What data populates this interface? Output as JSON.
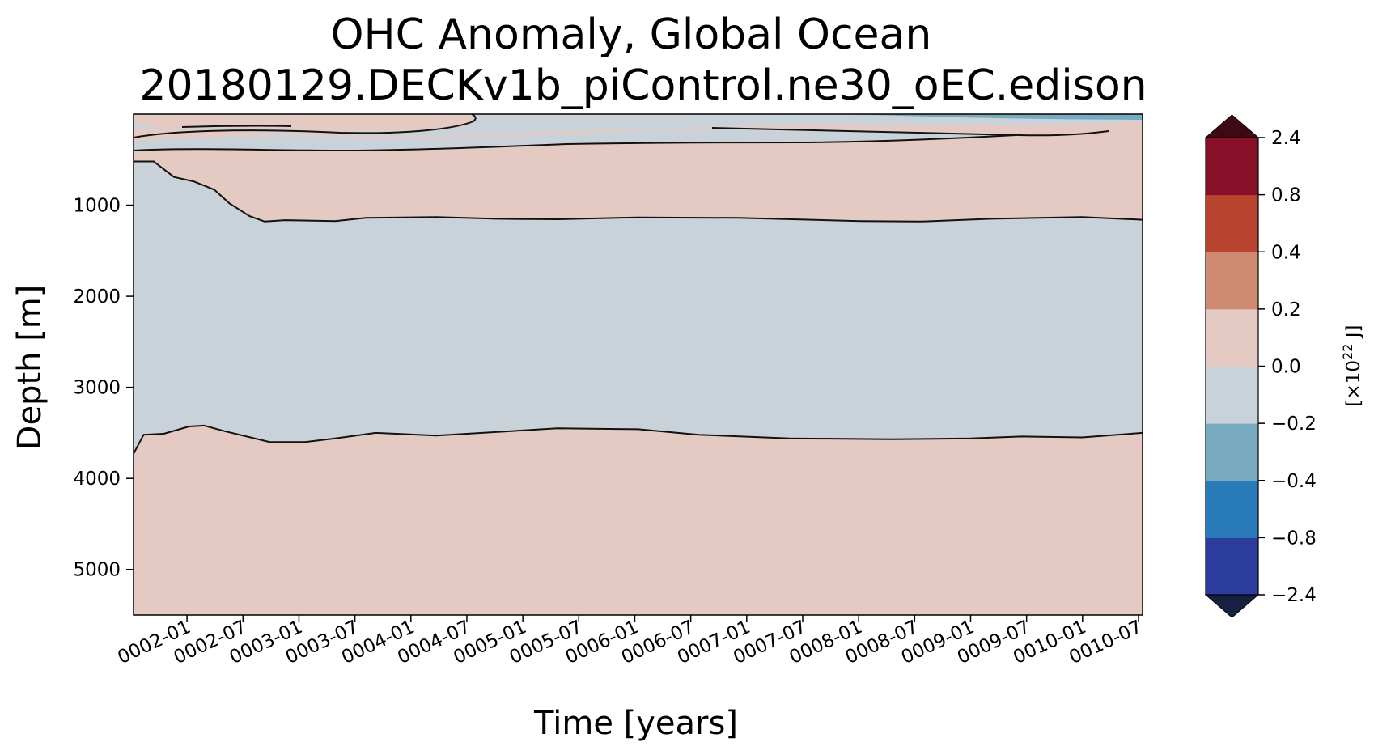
{
  "chart_data": {
    "type": "heatmap",
    "title_line1": "OHC Anomaly, Global Ocean",
    "title_line2": "20180129.DECKv1b_piControl.ne30_oEC.edison",
    "xlabel": "Time [years]",
    "ylabel": "Depth [m]",
    "x_range": [
      "0001-07",
      "0010-07"
    ],
    "ylim": [
      5500,
      0
    ],
    "x_ticks": [
      "0002-01",
      "0002-07",
      "0003-01",
      "0003-07",
      "0004-01",
      "0004-07",
      "0005-01",
      "0005-07",
      "0006-01",
      "0006-07",
      "0007-01",
      "0007-07",
      "0008-01",
      "0008-07",
      "0009-01",
      "0009-07",
      "0010-01",
      "0010-07"
    ],
    "y_ticks": [
      1000,
      2000,
      3000,
      4000,
      5000
    ],
    "y_tick_labels": [
      "1000",
      "2000",
      "3000",
      "4000",
      "5000"
    ],
    "colorbar": {
      "label_prefix": "[×10",
      "label_exponent": "22",
      "label_suffix": " J]",
      "levels": [
        -2.4,
        -0.8,
        -0.4,
        -0.2,
        0.0,
        0.2,
        0.4,
        0.8,
        2.4
      ],
      "tick_labels": [
        "−2.4",
        "−0.8",
        "−0.4",
        "−0.2",
        "0.0",
        "0.2",
        "0.4",
        "0.8",
        "2.4"
      ],
      "colors": [
        "#2b3c9c",
        "#2a7bba",
        "#78aac0",
        "#c9d2d9",
        "#e5cac3",
        "#cf8b72",
        "#b8432e",
        "#870f28"
      ],
      "extend_low_color": "#17203f",
      "extend_high_color": "#3e0814"
    },
    "regions": [
      {
        "name": "upper-positive",
        "level_range": [
          0.0,
          0.2
        ],
        "top_depth": 0,
        "bottom_depth": 1150
      },
      {
        "name": "middle-negative",
        "level_range": [
          -0.2,
          0.0
        ],
        "top_depth": 1150,
        "bottom_depth": 3550
      },
      {
        "name": "deep-positive",
        "level_range": [
          0.0,
          0.2
        ],
        "top_depth": 3550,
        "bottom_depth": 5500
      }
    ],
    "contour_levels": [
      0.0
    ],
    "contours": {
      "upper_boundary_depth": [
        [
          0.0,
          520
        ],
        [
          0.02,
          520
        ],
        [
          0.04,
          690
        ],
        [
          0.06,
          740
        ],
        [
          0.08,
          830
        ],
        [
          0.095,
          980
        ],
        [
          0.115,
          1120
        ],
        [
          0.13,
          1180
        ],
        [
          0.15,
          1165
        ],
        [
          0.2,
          1175
        ],
        [
          0.23,
          1140
        ],
        [
          0.3,
          1130
        ],
        [
          0.36,
          1150
        ],
        [
          0.42,
          1155
        ],
        [
          0.5,
          1135
        ],
        [
          0.6,
          1140
        ],
        [
          0.72,
          1175
        ],
        [
          0.78,
          1180
        ],
        [
          0.85,
          1150
        ],
        [
          0.94,
          1130
        ],
        [
          1.0,
          1160
        ]
      ],
      "deep_boundary_depth": [
        [
          0.0,
          3730
        ],
        [
          0.01,
          3520
        ],
        [
          0.03,
          3510
        ],
        [
          0.055,
          3430
        ],
        [
          0.07,
          3420
        ],
        [
          0.09,
          3480
        ],
        [
          0.135,
          3600
        ],
        [
          0.17,
          3600
        ],
        [
          0.2,
          3560
        ],
        [
          0.24,
          3500
        ],
        [
          0.3,
          3530
        ],
        [
          0.42,
          3450
        ],
        [
          0.5,
          3460
        ],
        [
          0.56,
          3520
        ],
        [
          0.65,
          3560
        ],
        [
          0.75,
          3570
        ],
        [
          0.83,
          3560
        ],
        [
          0.88,
          3540
        ],
        [
          0.94,
          3550
        ],
        [
          1.0,
          3500
        ]
      ]
    }
  }
}
